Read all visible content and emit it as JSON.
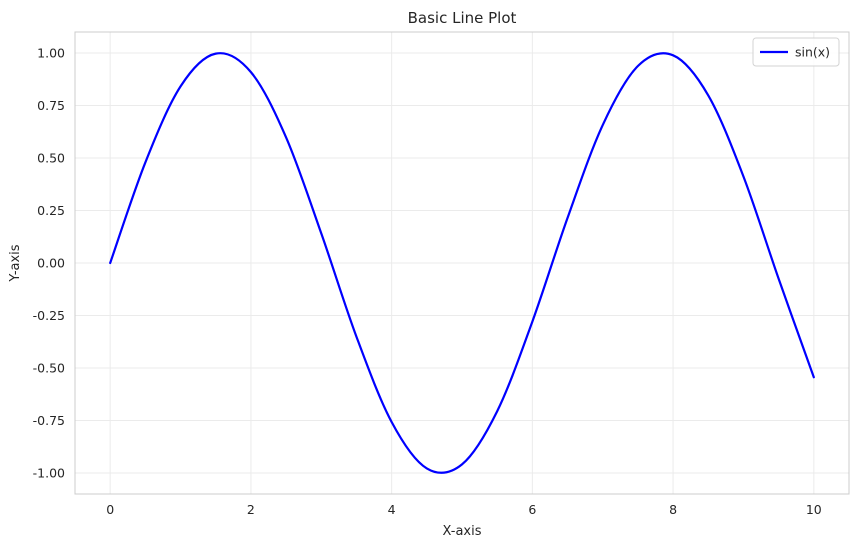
{
  "chart_data": {
    "type": "line",
    "title": "Basic Line Plot",
    "xlabel": "X-axis",
    "ylabel": "Y-axis",
    "xlim": [
      -0.5,
      10.5
    ],
    "ylim": [
      -1.1,
      1.1
    ],
    "xticks": [
      0,
      2,
      4,
      6,
      8,
      10
    ],
    "xtick_labels": [
      "0",
      "2",
      "4",
      "6",
      "8",
      "10"
    ],
    "yticks": [
      -1.0,
      -0.75,
      -0.5,
      -0.25,
      0.0,
      0.25,
      0.5,
      0.75,
      1.0
    ],
    "ytick_labels": [
      "-1.00",
      "-0.75",
      "-0.50",
      "-0.25",
      "0.00",
      "0.25",
      "0.50",
      "0.75",
      "1.00"
    ],
    "grid": true,
    "legend_position": "top-right",
    "series": [
      {
        "name": "sin(x)",
        "color": "#0000ff",
        "x": [
          0,
          0.5,
          1,
          1.5,
          2,
          2.5,
          3,
          3.5,
          4,
          4.5,
          5,
          5.5,
          6,
          6.5,
          7,
          7.5,
          8,
          8.5,
          9,
          9.5,
          10
        ],
        "y": [
          0.0,
          0.479,
          0.841,
          0.997,
          0.909,
          0.598,
          0.141,
          -0.351,
          -0.757,
          -0.978,
          -0.959,
          -0.706,
          -0.279,
          0.215,
          0.657,
          0.938,
          0.989,
          0.798,
          0.412,
          -0.075,
          -0.544
        ]
      }
    ]
  }
}
